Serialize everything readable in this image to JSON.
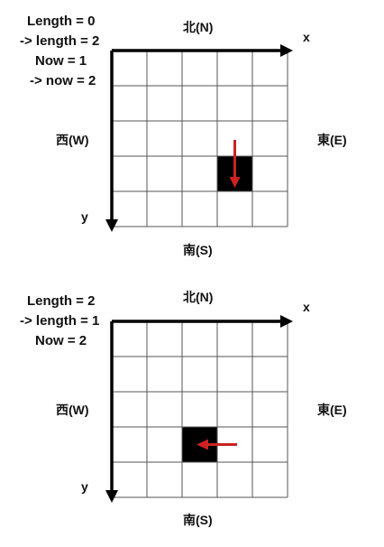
{
  "panels": [
    {
      "notes": [
        "Length = 0",
        "-> length = 2",
        "Now = 1",
        "-> now = 2"
      ],
      "north": "北(N)",
      "south": "南(S)",
      "west": "西(W)",
      "east": "東(E)",
      "x_axis": "x",
      "y_axis": "y",
      "grid": {
        "cols": 5,
        "rows": 5
      },
      "highlight_cell": {
        "col": 4,
        "row": 4
      },
      "arrow_direction": "down",
      "arrow_color": "#cc2222"
    },
    {
      "notes": [
        "Length = 2",
        "-> length = 1",
        "Now = 2"
      ],
      "north": "北(N)",
      "south": "南(S)",
      "west": "西(W)",
      "east": "東(E)",
      "x_axis": "x",
      "y_axis": "y",
      "grid": {
        "cols": 5,
        "rows": 5
      },
      "highlight_cell": {
        "col": 3,
        "row": 4
      },
      "arrow_direction": "left",
      "arrow_color": "#cc2222"
    }
  ]
}
